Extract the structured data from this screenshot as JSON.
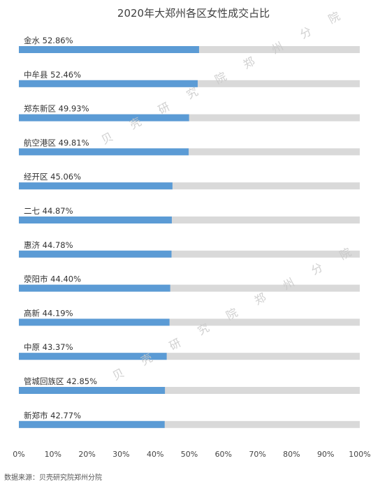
{
  "chart_data": {
    "type": "bar",
    "orientation": "horizontal",
    "title": "2020年大郑州各区女性成交占比",
    "categories": [
      "金水",
      "中牟县",
      "郑东新区",
      "航空港区",
      "经开区",
      "二七",
      "惠济",
      "荥阳市",
      "高新",
      "中原",
      "管城回族区",
      "新郑市"
    ],
    "value_labels": [
      "52.86%",
      "52.46%",
      "49.93%",
      "49.81%",
      "45.06%",
      "44.87%",
      "44.78%",
      "44.40%",
      "44.19%",
      "43.37%",
      "42.85%",
      "42.77%"
    ],
    "values": [
      52.86,
      52.46,
      49.93,
      49.81,
      45.06,
      44.87,
      44.78,
      44.4,
      44.19,
      43.37,
      42.85,
      42.77
    ],
    "xlim": [
      0,
      100
    ],
    "xticks": [
      "0%",
      "10%",
      "20%",
      "30%",
      "40%",
      "50%",
      "60%",
      "70%",
      "80%",
      "90%",
      "100%"
    ],
    "bar_color": "#5b9bd5",
    "track_color": "#d9d9d9",
    "grid": false
  },
  "watermark_text": "贝壳研究院郑州分院",
  "source_note": "数据来源：贝壳研究院郑州分院"
}
